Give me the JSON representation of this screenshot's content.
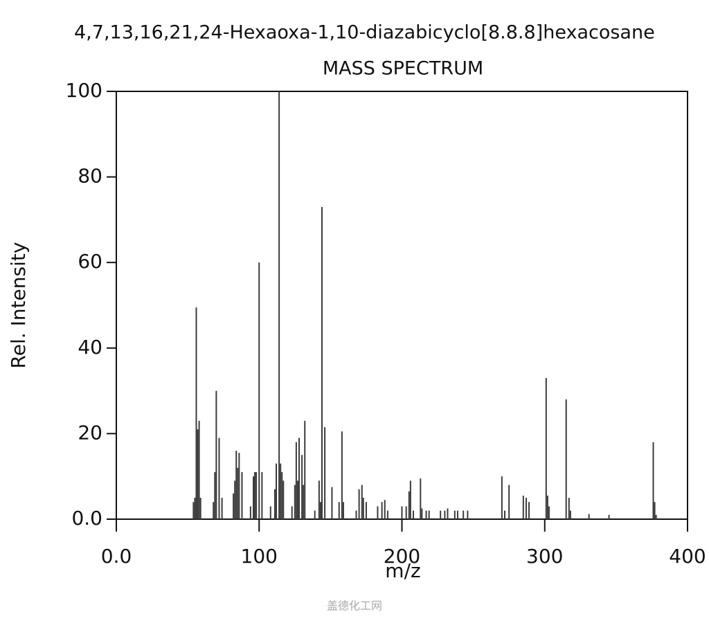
{
  "chart_data": {
    "type": "stem",
    "title": "4,7,13,16,21,24-Hexaoxa-1,10-diazabicyclo[8.8.8]hexacosane",
    "subtitle": "MASS SPECTRUM",
    "x_label": "m/z",
    "y_label": "Rel. Intensity",
    "watermark": "盖德化工网",
    "color": "#3a3a3a",
    "xlim": [
      0,
      400
    ],
    "ylim": [
      0,
      100
    ],
    "xticks": [
      {
        "value": 0,
        "label": "0.0"
      },
      100,
      200,
      300,
      400
    ],
    "yticks": [
      {
        "value": 0,
        "label": "0.0"
      },
      20,
      40,
      60,
      80,
      100
    ],
    "x": [
      54,
      55,
      56,
      57,
      58,
      59,
      68,
      69,
      70,
      72,
      74,
      82,
      83,
      84,
      85,
      86,
      88,
      94,
      96,
      97,
      98,
      100,
      102,
      108,
      111,
      112,
      114,
      115,
      116,
      117,
      123,
      125,
      126,
      127,
      128,
      130,
      131,
      132,
      139,
      142,
      143,
      144,
      146,
      151,
      156,
      158,
      159,
      168,
      170,
      172,
      173,
      175,
      183,
      186,
      188,
      190,
      200,
      203,
      205,
      206,
      208,
      213,
      214,
      217,
      219,
      227,
      230,
      232,
      237,
      239,
      243,
      246,
      270,
      272,
      275,
      285,
      287,
      289,
      301,
      302,
      303,
      315,
      317,
      318,
      331,
      345,
      376,
      377,
      378
    ],
    "values": [
      4,
      5,
      49.5,
      21,
      23,
      5,
      4,
      11,
      30,
      19,
      5,
      6,
      9,
      16,
      12,
      15.5,
      11,
      3,
      10,
      11,
      11,
      60,
      11,
      3,
      7,
      13,
      100,
      13,
      11,
      9,
      3,
      8,
      18,
      9,
      19,
      15,
      8,
      23,
      2,
      9,
      4,
      73,
      21.5,
      7.5,
      4,
      20.5,
      4,
      2,
      7,
      8,
      5,
      4,
      3,
      4,
      4.5,
      2,
      3,
      3,
      6.5,
      9,
      2,
      9.5,
      2.5,
      2,
      2,
      2,
      2,
      2.5,
      2,
      2,
      2,
      2,
      10,
      2,
      8,
      5.5,
      5,
      4,
      33,
      5.5,
      3,
      28,
      5,
      2,
      1.2,
      1,
      18,
      4,
      1
    ]
  }
}
